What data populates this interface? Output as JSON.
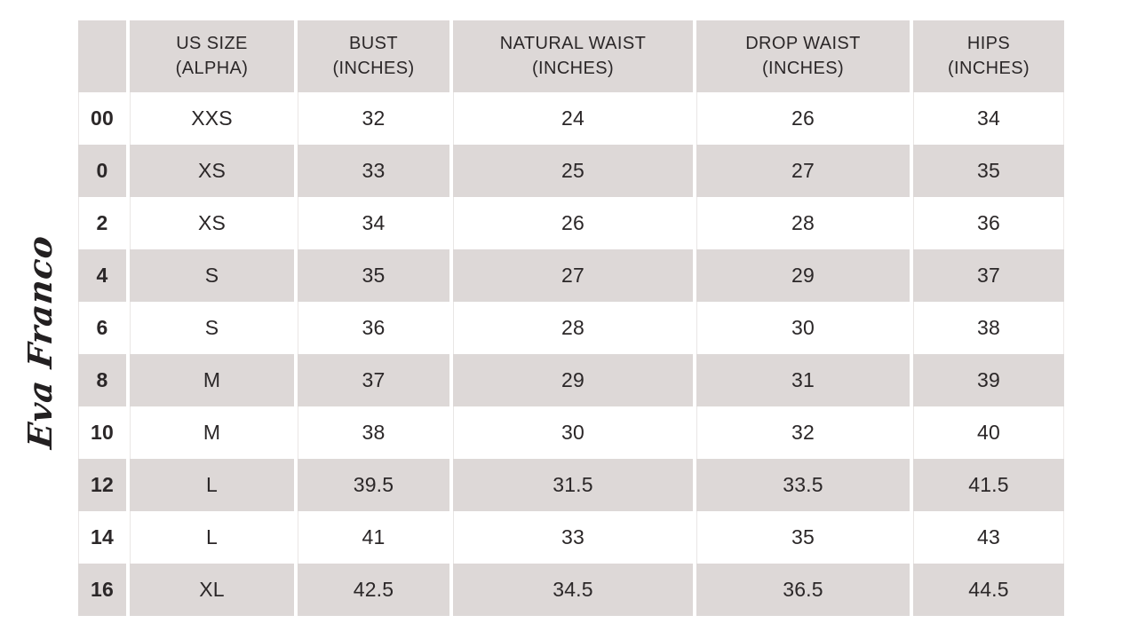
{
  "brand": {
    "logo_text": "Eva Franco"
  },
  "colors": {
    "header_bg": "#ddd8d7",
    "row_alt_bg": "#ddd8d7",
    "row_bg": "#ffffff",
    "text": "#2b2728",
    "separator_line": "#e9e6e5",
    "background": "#ffffff"
  },
  "chart_data": {
    "type": "table",
    "title": "",
    "columns": [
      {
        "id": "us-size-numeric",
        "label": ""
      },
      {
        "id": "us-size-alpha",
        "label": "US SIZE\n(ALPHA)"
      },
      {
        "id": "bust",
        "label": "BUST\n(INCHES)"
      },
      {
        "id": "natural-waist",
        "label": "NATURAL WAIST\n(INCHES)"
      },
      {
        "id": "drop-waist",
        "label": "DROP WAIST\n(INCHES)"
      },
      {
        "id": "hips",
        "label": "HIPS\n(INCHES)"
      }
    ],
    "rows": [
      [
        "00",
        "XXS",
        "32",
        "24",
        "26",
        "34"
      ],
      [
        "0",
        "XS",
        "33",
        "25",
        "27",
        "35"
      ],
      [
        "2",
        "XS",
        "34",
        "26",
        "28",
        "36"
      ],
      [
        "4",
        "S",
        "35",
        "27",
        "29",
        "37"
      ],
      [
        "6",
        "S",
        "36",
        "28",
        "30",
        "38"
      ],
      [
        "8",
        "M",
        "37",
        "29",
        "31",
        "39"
      ],
      [
        "10",
        "M",
        "38",
        "30",
        "32",
        "40"
      ],
      [
        "12",
        "L",
        "39.5",
        "31.5",
        "33.5",
        "41.5"
      ],
      [
        "14",
        "L",
        "41",
        "33",
        "35",
        "43"
      ],
      [
        "16",
        "XL",
        "42.5",
        "34.5",
        "36.5",
        "44.5"
      ]
    ]
  }
}
